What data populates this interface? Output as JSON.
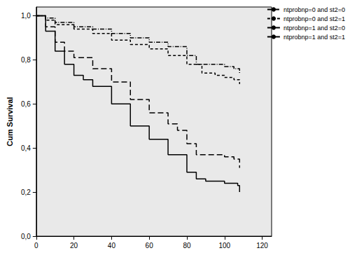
{
  "chart_data": {
    "type": "line",
    "step": true,
    "y_label": "Cum Survival",
    "xlim": [
      0,
      125
    ],
    "xticks": [
      0,
      20,
      40,
      60,
      80,
      100,
      120
    ],
    "ylim": [
      0,
      1.04
    ],
    "yticks": [
      {
        "value": 0,
        "label": "0,0"
      },
      {
        "value": 0.2,
        "label": "0,2"
      },
      {
        "value": 0.4,
        "label": "0,4"
      },
      {
        "value": 0.6,
        "label": "0,6"
      },
      {
        "value": 0.8,
        "label": "0,8"
      },
      {
        "value": 1.0,
        "label": "1,0"
      }
    ],
    "grid": false,
    "legend": "top right",
    "marker": "none",
    "series": [
      {
        "name": "ntprobnp=0 and st2=0",
        "color": "#000000",
        "line_style": "dashdot",
        "x": [
          0,
          5,
          10,
          20,
          30,
          40,
          50,
          60,
          70,
          80,
          85,
          90,
          100,
          105,
          108
        ],
        "values": [
          1.0,
          0.99,
          0.97,
          0.95,
          0.94,
          0.92,
          0.9,
          0.88,
          0.86,
          0.82,
          0.78,
          0.78,
          0.77,
          0.76,
          0.74
        ]
      },
      {
        "name": "ntprobnp=0 and st2=1",
        "color": "#000000",
        "line_style": "dashed",
        "x": [
          0,
          5,
          10,
          20,
          30,
          40,
          50,
          60,
          70,
          80,
          88,
          95,
          100,
          105,
          108
        ],
        "values": [
          1.0,
          0.98,
          0.96,
          0.94,
          0.92,
          0.89,
          0.87,
          0.85,
          0.82,
          0.78,
          0.74,
          0.73,
          0.72,
          0.71,
          0.69
        ]
      },
      {
        "name": "ntprobnp=1 and st2=0",
        "color": "#000000",
        "line_style": "longdash",
        "x": [
          0,
          5,
          10,
          15,
          20,
          30,
          40,
          50,
          60,
          70,
          75,
          80,
          85,
          100,
          105,
          108
        ],
        "values": [
          1.0,
          0.95,
          0.88,
          0.84,
          0.81,
          0.76,
          0.7,
          0.62,
          0.56,
          0.51,
          0.48,
          0.42,
          0.37,
          0.36,
          0.35,
          0.31
        ]
      },
      {
        "name": "ntprobnp=1 and st2=1",
        "color": "#000000",
        "line_style": "solid",
        "x": [
          0,
          5,
          10,
          15,
          20,
          25,
          30,
          40,
          50,
          60,
          70,
          80,
          85,
          90,
          100,
          107,
          108
        ],
        "values": [
          1.0,
          0.93,
          0.84,
          0.78,
          0.73,
          0.71,
          0.68,
          0.6,
          0.5,
          0.44,
          0.37,
          0.29,
          0.26,
          0.25,
          0.24,
          0.23,
          0.2
        ]
      }
    ]
  }
}
